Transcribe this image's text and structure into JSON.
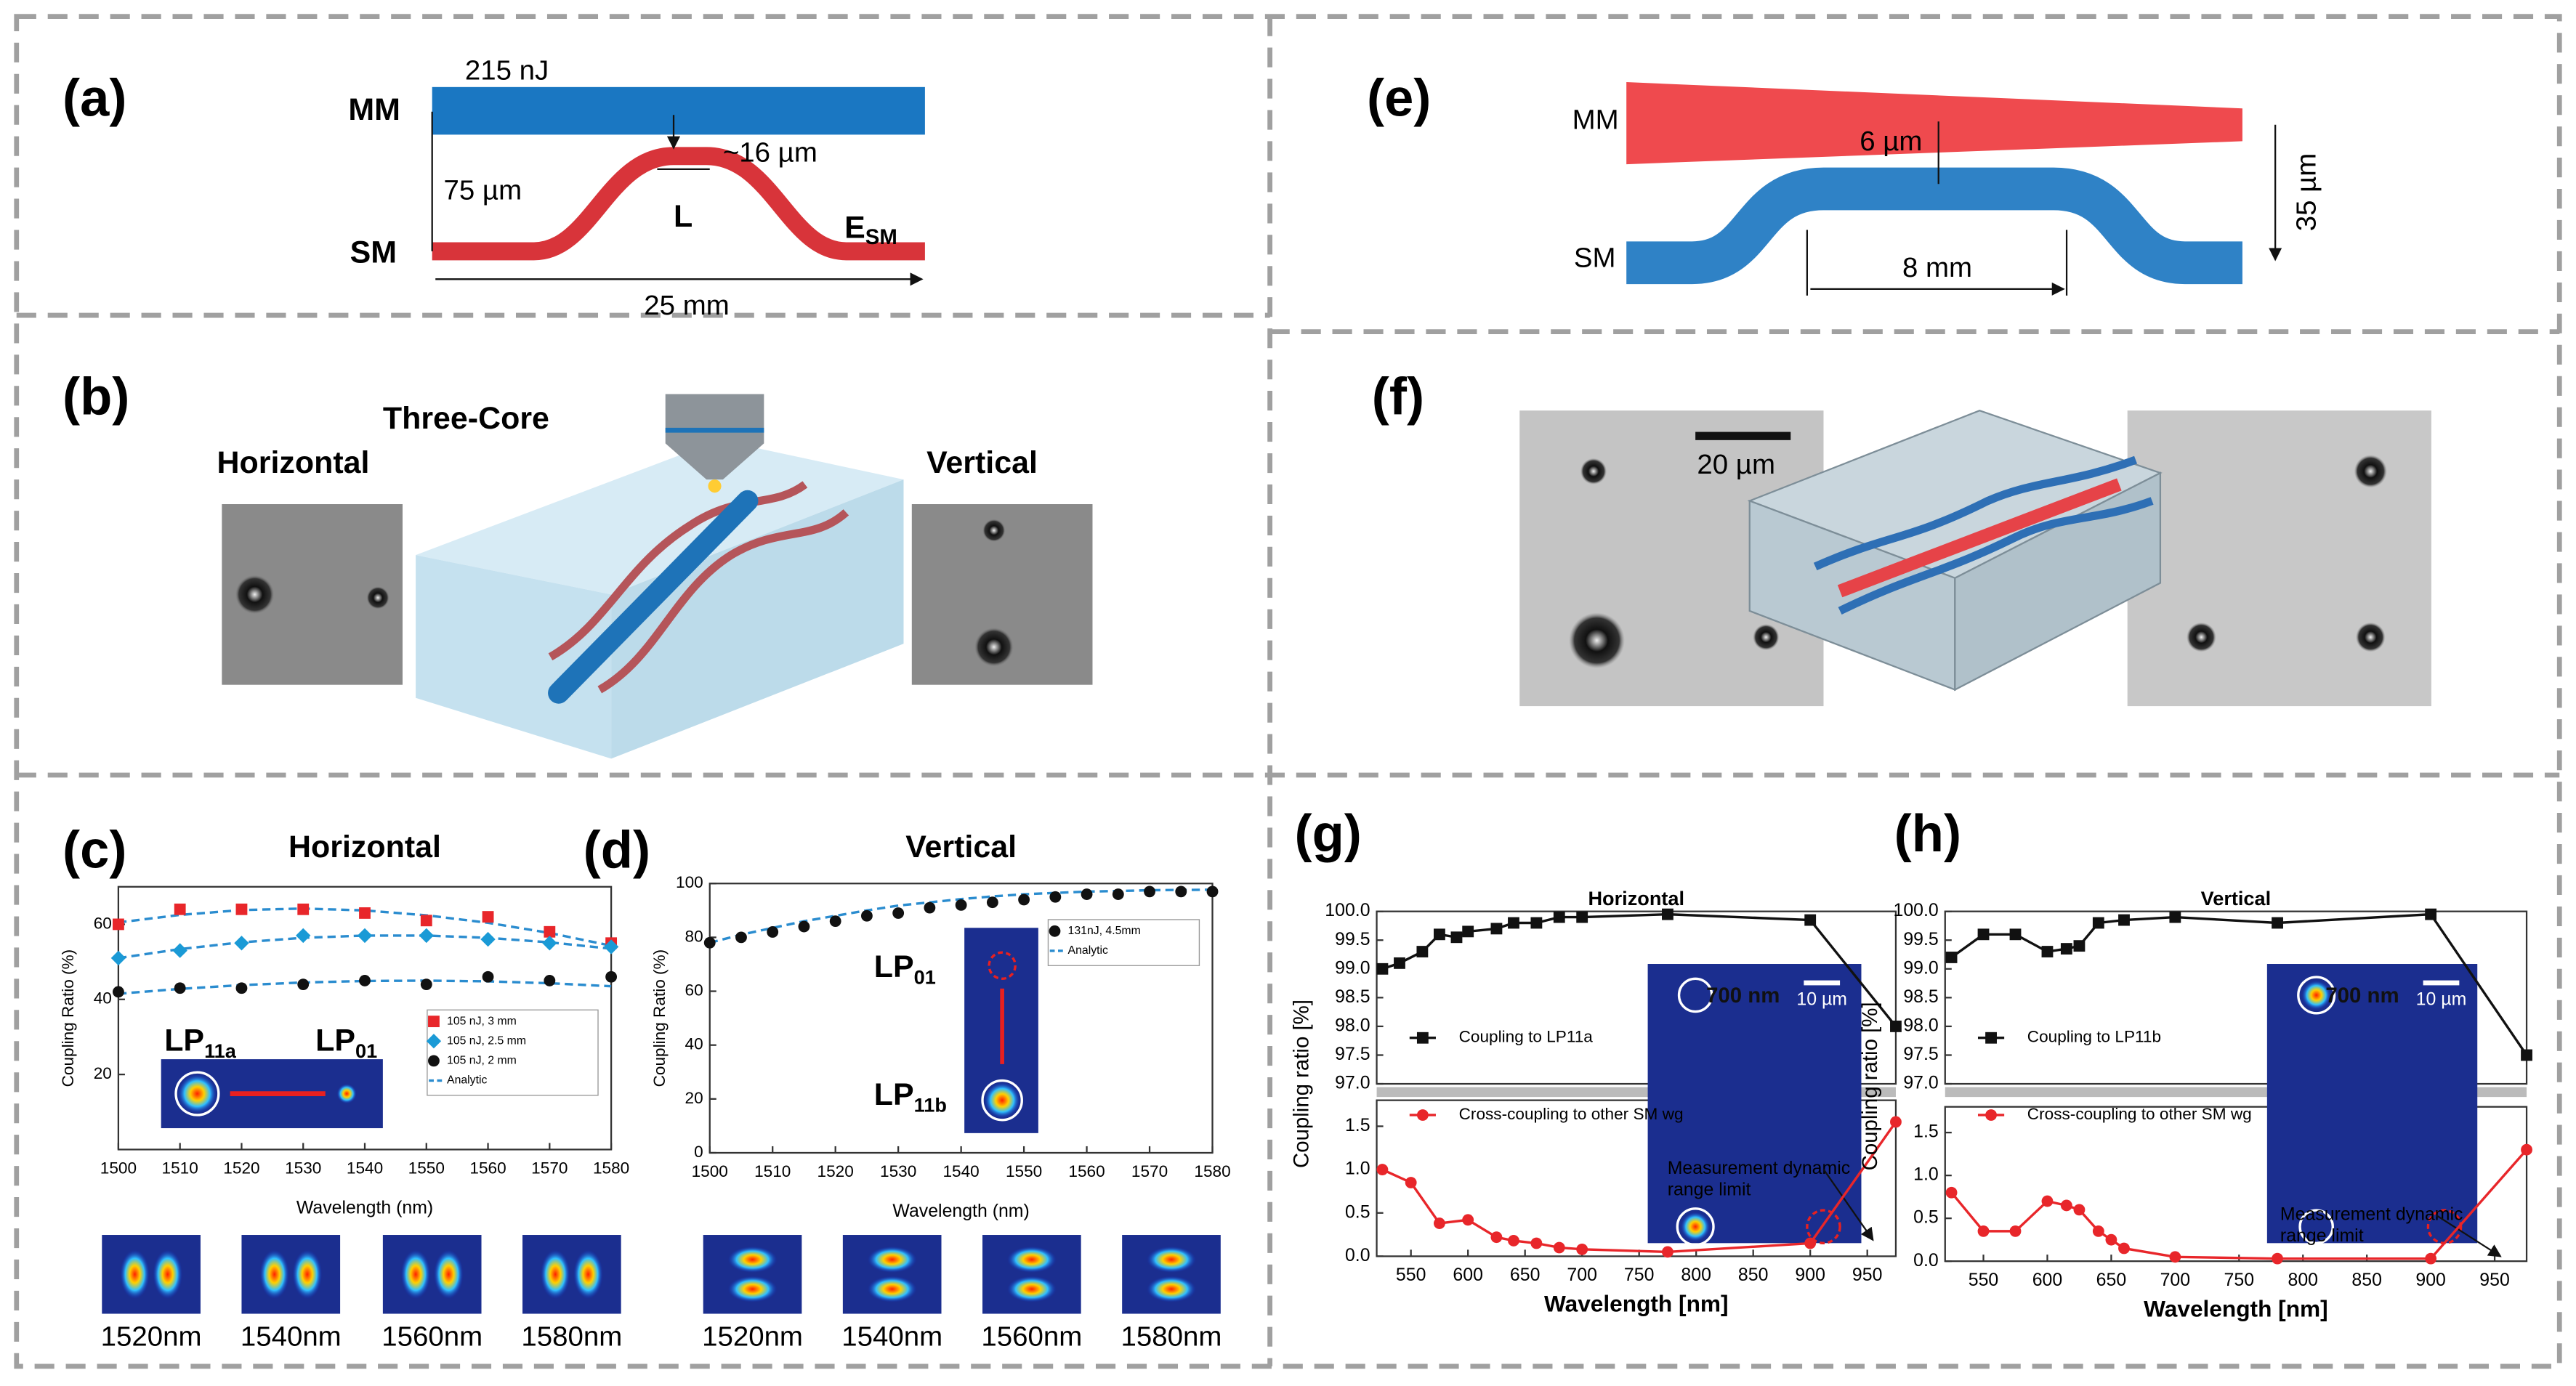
{
  "panels": {
    "a": {
      "label": "(a)",
      "mm": "MM",
      "sm": "SM",
      "energy": "215 nJ",
      "gap": "75 µm",
      "height": "~16 µm",
      "length": "L",
      "esm": "E",
      "esm_sub": "SM",
      "total": "25 mm"
    },
    "b": {
      "label": "(b)",
      "center": "Three-Core",
      "left": "Horizontal",
      "right": "Vertical"
    },
    "e": {
      "label": "(e)",
      "mm": "MM",
      "sm": "SM",
      "gap": "6 µm",
      "length": "8 mm",
      "height": "35 µm"
    },
    "f": {
      "label": "(f)",
      "scale": "20 µm"
    }
  },
  "chart_data": [
    {
      "type": "scatter",
      "panel_label": "(c)",
      "title": "Horizontal",
      "x_label": "Wavelength (nm)",
      "y_label": "Coupling Ratio (%)",
      "x": [
        1500,
        1510,
        1520,
        1530,
        1540,
        1550,
        1560,
        1570,
        1580
      ],
      "xlim": [
        1500,
        1580
      ],
      "xticks": [
        1500,
        1510,
        1520,
        1530,
        1540,
        1550,
        1560,
        1570,
        1580
      ],
      "ylim": [
        0,
        70
      ],
      "yticks": [
        20,
        40,
        60
      ],
      "series": [
        {
          "name": "105 nJ, 3 mm",
          "color": "#e8262a",
          "marker": "square",
          "values": [
            60,
            64,
            64,
            64,
            63,
            61,
            62,
            58,
            55
          ]
        },
        {
          "name": "105 nJ, 2.5 mm",
          "color": "#1a9ad6",
          "marker": "diamond",
          "values": [
            51,
            53,
            55,
            57,
            57,
            57,
            56,
            55,
            54
          ]
        },
        {
          "name": "105 nJ, 2 mm",
          "color": "#111111",
          "marker": "circle",
          "values": [
            42,
            43,
            43,
            44,
            45,
            44,
            46,
            45,
            46
          ]
        }
      ],
      "analytic": {
        "name": "Analytic",
        "color": "#2a8ccf",
        "curves": [
          [
            60.5,
            62.5,
            63.8,
            64.2,
            63.7,
            62.4,
            60.4,
            57.7,
            54.3
          ],
          [
            51,
            53.4,
            55.2,
            56.4,
            57,
            57,
            56.4,
            55.2,
            53.5
          ],
          [
            41.5,
            42.8,
            43.8,
            44.5,
            44.9,
            45,
            44.8,
            44.3,
            43.5
          ]
        ]
      },
      "inset_labels": [
        {
          "text": "LP",
          "sub": "11a"
        },
        {
          "text": "LP",
          "sub": "01"
        }
      ],
      "mode_labels": [
        "1520nm",
        "1540nm",
        "1560nm",
        "1580nm"
      ]
    },
    {
      "type": "scatter",
      "panel_label": "(d)",
      "title": "Vertical",
      "x_label": "Wavelength (nm)",
      "y_label": "Coupling Ratio (%)",
      "x": [
        1500,
        1505,
        1510,
        1515,
        1520,
        1525,
        1530,
        1535,
        1540,
        1545,
        1550,
        1555,
        1560,
        1565,
        1570,
        1575,
        1580
      ],
      "xlim": [
        1500,
        1580
      ],
      "xticks": [
        1500,
        1510,
        1520,
        1530,
        1540,
        1550,
        1560,
        1570,
        1580
      ],
      "ylim": [
        0,
        100
      ],
      "yticks": [
        0,
        20,
        40,
        60,
        80,
        100
      ],
      "series": [
        {
          "name": "131nJ, 4.5mm",
          "color": "#111111",
          "marker": "circle",
          "values": [
            78,
            80,
            82,
            84,
            86,
            88,
            89,
            91,
            92,
            93,
            94,
            95,
            96,
            96,
            97,
            97,
            97
          ]
        }
      ],
      "analytic": {
        "name": "Analytic",
        "color": "#2a8ccf",
        "curves": [
          [
            78,
            81,
            83.5,
            86,
            88,
            90,
            91.8,
            93,
            94.2,
            95.2,
            96,
            96.5,
            97,
            97.2,
            97.5,
            97.6,
            97.7
          ]
        ]
      },
      "inset_labels": [
        {
          "text": "LP",
          "sub": "01"
        },
        {
          "text": "LP",
          "sub": "11b"
        }
      ],
      "mode_labels": [
        "1520nm",
        "1540nm",
        "1560nm",
        "1580nm"
      ]
    },
    {
      "type": "line",
      "panel_label": "(g)",
      "title": "Horizontal",
      "x_label": "Wavelength [nm]",
      "y_label": "Coupling ratio [%]",
      "xlim": [
        520,
        975
      ],
      "xticks": [
        550,
        600,
        650,
        700,
        750,
        800,
        850,
        900,
        950
      ],
      "ylim": [
        97,
        100
      ],
      "yticks": [
        {
          "value": 97,
          "label": "97.0"
        },
        97.5,
        {
          "value": 98,
          "label": "98.0"
        },
        98.5,
        {
          "value": 99,
          "label": "99.0"
        },
        99.5,
        {
          "value": 100,
          "label": "100.0"
        }
      ],
      "ylim_lower": [
        0,
        1.8
      ],
      "yticks_lower": [
        {
          "value": 0,
          "label": "0.0"
        },
        0.5,
        {
          "value": 1,
          "label": "1.0"
        },
        1.5
      ],
      "series": [
        {
          "name": "Coupling to LP11a",
          "color": "#111111",
          "marker": "square",
          "segment": "upper",
          "x": [
            525,
            540,
            560,
            575,
            590,
            600,
            625,
            640,
            660,
            680,
            700,
            775,
            900,
            975
          ],
          "values": [
            99.0,
            99.1,
            99.3,
            99.6,
            99.55,
            99.65,
            99.7,
            99.8,
            99.8,
            99.9,
            99.9,
            99.95,
            99.85,
            98.0
          ]
        },
        {
          "name": "Cross-coupling to other SM wg",
          "color": "#e8262a",
          "marker": "circle",
          "segment": "lower",
          "x": [
            525,
            550,
            575,
            600,
            625,
            640,
            660,
            680,
            700,
            775,
            900,
            975
          ],
          "values": [
            1.0,
            0.85,
            0.38,
            0.42,
            0.22,
            0.18,
            0.15,
            0.1,
            0.08,
            0.05,
            0.15,
            1.55
          ]
        }
      ],
      "annotation": [
        "Measurement dynamic",
        "range limit"
      ],
      "inset_title": "700 nm",
      "inset_scale": "10 µm"
    },
    {
      "type": "line",
      "panel_label": "(h)",
      "title": "Vertical",
      "x_label": "Wavelength [nm]",
      "y_label": "Coupling ratio [%]",
      "xlim": [
        520,
        975
      ],
      "xticks": [
        550,
        600,
        650,
        700,
        750,
        800,
        850,
        900,
        950
      ],
      "ylim": [
        97,
        100
      ],
      "yticks": [
        {
          "value": 97,
          "label": "97.0"
        },
        97.5,
        {
          "value": 98,
          "label": "98.0"
        },
        98.5,
        {
          "value": 99,
          "label": "99.0"
        },
        99.5,
        {
          "value": 100,
          "label": "100.0"
        }
      ],
      "ylim_lower": [
        0,
        1.8
      ],
      "yticks_lower": [
        {
          "value": 0,
          "label": "0.0"
        },
        0.5,
        {
          "value": 1,
          "label": "1.0"
        },
        1.5
      ],
      "series": [
        {
          "name": "Coupling to LP11b",
          "color": "#111111",
          "marker": "square",
          "segment": "upper",
          "x": [
            525,
            550,
            575,
            600,
            615,
            625,
            640,
            660,
            700,
            780,
            900,
            975
          ],
          "values": [
            99.2,
            99.6,
            99.6,
            99.3,
            99.35,
            99.4,
            99.8,
            99.85,
            99.9,
            99.8,
            99.95,
            97.5
          ]
        },
        {
          "name": "Cross-coupling to other SM wg",
          "color": "#e8262a",
          "marker": "circle",
          "segment": "lower",
          "x": [
            525,
            550,
            575,
            600,
            615,
            625,
            640,
            650,
            660,
            700,
            780,
            900,
            975
          ],
          "values": [
            0.8,
            0.35,
            0.35,
            0.7,
            0.65,
            0.6,
            0.35,
            0.25,
            0.15,
            0.05,
            0.03,
            0.03,
            1.3
          ]
        }
      ],
      "annotation": [
        "Measurement dynamic",
        "range limit"
      ],
      "inset_title": "700 nm",
      "inset_scale": "10 µm"
    }
  ]
}
